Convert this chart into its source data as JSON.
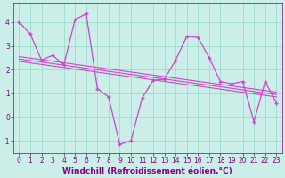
{
  "xlabel": "Windchill (Refroidissement éolien,°C)",
  "bg_color": "#cceee8",
  "grid_color": "#99ddcc",
  "line_color": "#cc44cc",
  "xlim": [
    -0.5,
    23.5
  ],
  "ylim": [
    -1.5,
    4.8
  ],
  "yticks": [
    -1,
    0,
    1,
    2,
    3,
    4
  ],
  "xticks": [
    0,
    1,
    2,
    3,
    4,
    5,
    6,
    7,
    8,
    9,
    10,
    11,
    12,
    13,
    14,
    15,
    16,
    17,
    18,
    19,
    20,
    21,
    22,
    23
  ],
  "series1_x": [
    0,
    1,
    2,
    3,
    4,
    5,
    6,
    7,
    8,
    9,
    10,
    11,
    12,
    13,
    14,
    15,
    16,
    17,
    18,
    19,
    20,
    21,
    22,
    23
  ],
  "series1_y": [
    4.0,
    3.5,
    2.4,
    2.6,
    2.2,
    4.1,
    4.35,
    1.2,
    0.85,
    -1.15,
    -1.0,
    0.8,
    1.55,
    1.6,
    2.4,
    3.4,
    3.35,
    2.5,
    1.5,
    1.4,
    1.5,
    -0.2,
    1.5,
    0.6
  ],
  "series2_x": [
    0,
    23
  ],
  "series2_y": [
    2.55,
    1.05
  ],
  "series3_x": [
    0,
    23
  ],
  "series3_y": [
    2.45,
    0.95
  ],
  "series4_x": [
    0,
    23
  ],
  "series4_y": [
    2.35,
    0.85
  ],
  "font_color": "#880088",
  "tick_fontsize": 5.5,
  "label_fontsize": 6.5
}
